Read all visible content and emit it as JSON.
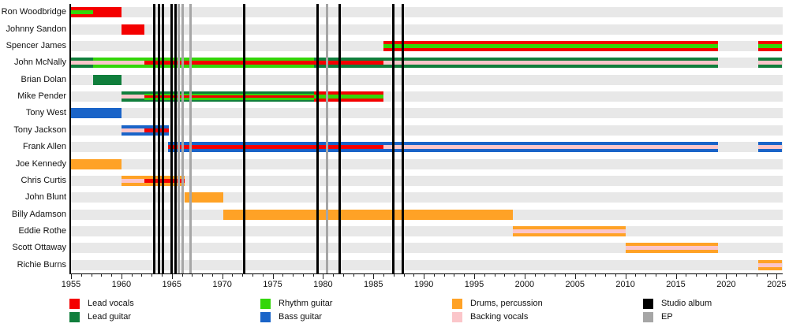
{
  "chart_data": {
    "type": "timeline",
    "title": "",
    "x_axis": {
      "min": 1955,
      "max": 2025.6,
      "major_tick_years": [
        1955,
        1960,
        1965,
        1970,
        1975,
        1980,
        1985,
        1990,
        1995,
        2000,
        2005,
        2010,
        2015,
        2020,
        2025
      ],
      "minor_tick_step": 1,
      "grid": false
    },
    "colors": {
      "lead_vocals": "#f40000",
      "lead_guitar": "#107e3c",
      "rhythm_guitar": "#33d60a",
      "bass_guitar": "#1a64c8",
      "drums": "#ffa226",
      "backing_vocals": "#fbc6ca",
      "studio_album": "#000000",
      "ep": "#a6a6a6"
    },
    "rows": [
      {
        "name": "Ron Woodbridge",
        "segments": [
          {
            "start": 1955,
            "end": 1957.2,
            "roles": [
              "lead_vocals",
              "rhythm_guitar"
            ]
          },
          {
            "start": 1957.2,
            "end": 1960,
            "roles": [
              "lead_vocals"
            ]
          }
        ]
      },
      {
        "name": "Johnny Sandon",
        "segments": [
          {
            "start": 1960,
            "end": 1962.25,
            "roles": [
              "lead_vocals"
            ]
          }
        ]
      },
      {
        "name": "Spencer James",
        "segments": [
          {
            "start": 1986,
            "end": 2019.2,
            "roles": [
              "lead_vocals",
              "rhythm_guitar"
            ]
          },
          {
            "start": 2023.15,
            "end": 2025.55,
            "roles": [
              "lead_vocals",
              "rhythm_guitar"
            ]
          }
        ]
      },
      {
        "name": "John McNally",
        "segments": [
          {
            "start": 1955,
            "end": 1957.2,
            "roles": [
              "lead_guitar",
              "backing_vocals"
            ]
          },
          {
            "start": 1957.2,
            "end": 1962.25,
            "roles": [
              "rhythm_guitar",
              "backing_vocals"
            ]
          },
          {
            "start": 1962.25,
            "end": 1979.1,
            "roles": [
              "rhythm_guitar",
              "lead_vocals"
            ]
          },
          {
            "start": 1979.1,
            "end": 1986,
            "roles": [
              "lead_guitar",
              "lead_vocals"
            ]
          },
          {
            "start": 1986,
            "end": 2019.2,
            "roles": [
              "lead_guitar",
              "backing_vocals"
            ]
          },
          {
            "start": 2023.15,
            "end": 2025.55,
            "roles": [
              "lead_guitar",
              "backing_vocals"
            ]
          }
        ]
      },
      {
        "name": "Brian Dolan",
        "segments": [
          {
            "start": 1957.2,
            "end": 1960,
            "roles": [
              "lead_guitar"
            ]
          }
        ]
      },
      {
        "name": "Mike Pender",
        "segments": [
          {
            "start": 1960,
            "end": 1962.25,
            "roles": [
              "lead_guitar",
              "backing_vocals"
            ]
          },
          {
            "start": 1962.25,
            "end": 1979.1,
            "roles": [
              "lead_guitar",
              "rhythm_guitar",
              "lead_vocals"
            ]
          },
          {
            "start": 1979.1,
            "end": 1986,
            "roles": [
              "lead_vocals",
              "rhythm_guitar"
            ]
          }
        ]
      },
      {
        "name": "Tony West",
        "segments": [
          {
            "start": 1955,
            "end": 1960,
            "roles": [
              "bass_guitar"
            ]
          }
        ]
      },
      {
        "name": "Tony Jackson",
        "segments": [
          {
            "start": 1960,
            "end": 1962.25,
            "roles": [
              "bass_guitar",
              "backing_vocals"
            ]
          },
          {
            "start": 1962.25,
            "end": 1964.7,
            "roles": [
              "bass_guitar",
              "lead_vocals"
            ]
          }
        ]
      },
      {
        "name": "Frank Allen",
        "segments": [
          {
            "start": 1964.6,
            "end": 1986,
            "roles": [
              "bass_guitar",
              "lead_vocals"
            ]
          },
          {
            "start": 1986,
            "end": 2019.2,
            "roles": [
              "bass_guitar",
              "backing_vocals"
            ]
          },
          {
            "start": 2023.15,
            "end": 2025.55,
            "roles": [
              "bass_guitar",
              "backing_vocals"
            ]
          }
        ]
      },
      {
        "name": "Joe Kennedy",
        "segments": [
          {
            "start": 1955,
            "end": 1960,
            "roles": [
              "drums"
            ]
          }
        ]
      },
      {
        "name": "Chris Curtis",
        "segments": [
          {
            "start": 1960,
            "end": 1962.25,
            "roles": [
              "drums",
              "backing_vocals"
            ]
          },
          {
            "start": 1962.25,
            "end": 1966.3,
            "roles": [
              "drums",
              "lead_vocals"
            ]
          }
        ]
      },
      {
        "name": "John Blunt",
        "segments": [
          {
            "start": 1966.3,
            "end": 1970.1,
            "roles": [
              "drums"
            ]
          }
        ]
      },
      {
        "name": "Billy Adamson",
        "segments": [
          {
            "start": 1970.1,
            "end": 1998.8,
            "roles": [
              "drums"
            ]
          }
        ]
      },
      {
        "name": "Eddie Rothe",
        "segments": [
          {
            "start": 1998.8,
            "end": 2010.0,
            "roles": [
              "drums",
              "backing_vocals"
            ]
          }
        ]
      },
      {
        "name": "Scott Ottaway",
        "segments": [
          {
            "start": 2010.0,
            "end": 2019.2,
            "roles": [
              "drums",
              "backing_vocals"
            ]
          }
        ]
      },
      {
        "name": "Richie Burns",
        "segments": [
          {
            "start": 2023.15,
            "end": 2025.55,
            "roles": [
              "drums",
              "backing_vocals"
            ]
          }
        ]
      }
    ],
    "events": {
      "studio_album": [
        1963.25,
        1963.7,
        1964.15,
        1965.0,
        1965.4,
        1972.15,
        1979.45,
        1981.65,
        1986.95,
        1987.95
      ],
      "ep": [
        1965.7,
        1966.05,
        1966.85,
        1980.4
      ]
    },
    "legend": {
      "position": "bottom",
      "items": [
        {
          "label": "Lead vocals",
          "role": "lead_vocals",
          "col": 0,
          "row": 0
        },
        {
          "label": "Lead guitar",
          "role": "lead_guitar",
          "col": 0,
          "row": 1
        },
        {
          "label": "Rhythm guitar",
          "role": "rhythm_guitar",
          "col": 1,
          "row": 0
        },
        {
          "label": "Bass guitar",
          "role": "bass_guitar",
          "col": 1,
          "row": 1
        },
        {
          "label": "Drums, percussion",
          "role": "drums",
          "col": 2,
          "row": 0
        },
        {
          "label": "Backing vocals",
          "role": "backing_vocals",
          "col": 2,
          "row": 1
        },
        {
          "label": "Studio album",
          "role": "studio_album",
          "col": 3,
          "row": 0
        },
        {
          "label": "EP",
          "role": "ep",
          "col": 3,
          "row": 1
        }
      ]
    }
  }
}
